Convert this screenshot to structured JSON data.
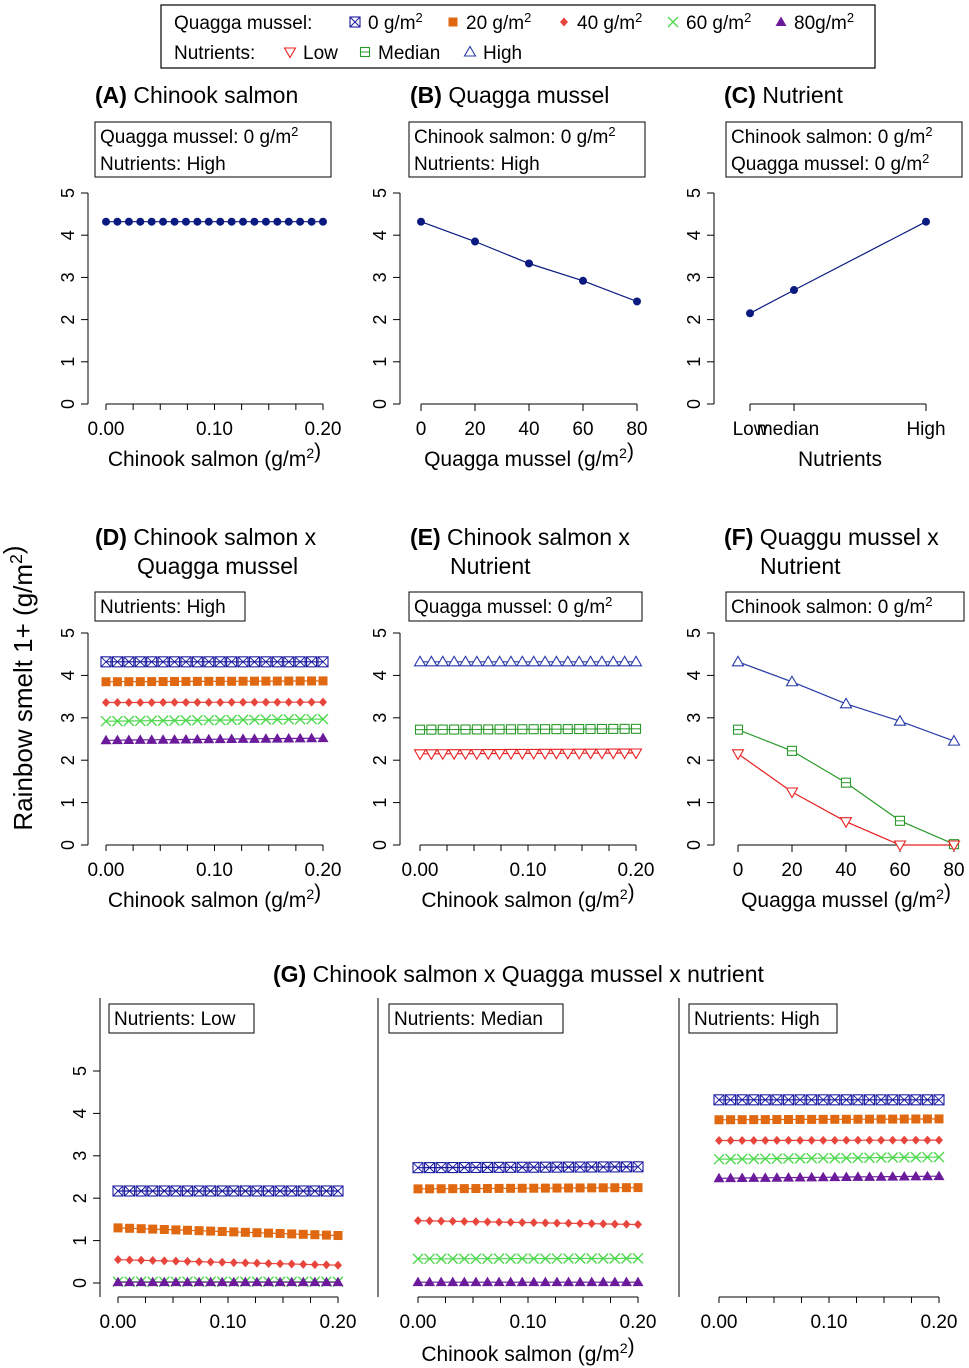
{
  "colors": {
    "q0": "#1a1aa0",
    "q20": "#e06810",
    "q40": "#e8453c",
    "q60": "#50d850",
    "q80": "#6a1a9a",
    "low": "#e82020",
    "median": "#2a9a2a",
    "high": "#2a3aa8",
    "main": "#0b1a80"
  },
  "legend": {
    "quagga_label": "Quagga mussel:",
    "quagga_items": [
      "0 g/m2",
      "20 g/m2",
      "40 g/m2",
      "60 g/m2",
      "80g/m2"
    ],
    "nutrient_label": "Nutrients:",
    "nutrient_items": [
      "Low",
      "Median",
      "High"
    ]
  },
  "ylabel": "Rainbow smelt 1+ (g/m2)",
  "g_title": "(G) Chinook salmon x Quagga mussel x nutrient",
  "chart_data": [
    {
      "id": "A",
      "type": "line",
      "title_tag": "(A)",
      "title": "Chinook salmon",
      "box": [
        "Quagga mussel: 0 g/m2",
        "Nutrients: High"
      ],
      "xlabel": "Chinook salmon (g/m2)",
      "x_ticks": [
        "0.00",
        "0.10",
        "0.20"
      ],
      "y_ticks": [
        "0",
        "1",
        "2",
        "3",
        "4",
        "5"
      ],
      "xlim": [
        0,
        0.2
      ],
      "ylim": [
        0,
        5
      ],
      "series": [
        {
          "color": "main",
          "marker": "dot",
          "x": [
            0,
            0.0105,
            0.0211,
            0.0316,
            0.0421,
            0.0526,
            0.0632,
            0.0737,
            0.0842,
            0.0947,
            0.1053,
            0.1158,
            0.1263,
            0.1368,
            0.1474,
            0.1579,
            0.1684,
            0.1789,
            0.1895,
            0.2
          ],
          "y": [
            4.32,
            4.32,
            4.32,
            4.32,
            4.32,
            4.32,
            4.32,
            4.32,
            4.32,
            4.32,
            4.32,
            4.32,
            4.32,
            4.32,
            4.32,
            4.32,
            4.32,
            4.32,
            4.32,
            4.32
          ]
        }
      ]
    },
    {
      "id": "B",
      "type": "line",
      "title_tag": "(B)",
      "title": "Quagga mussel",
      "box": [
        "Chinook salmon: 0 g/m2",
        "Nutrients: High"
      ],
      "xlabel": "Quagga mussel (g/m2)",
      "x_ticks": [
        "0",
        "20",
        "40",
        "60",
        "80"
      ],
      "y_ticks": [
        "0",
        "1",
        "2",
        "3",
        "4",
        "5"
      ],
      "xlim": [
        0,
        80
      ],
      "ylim": [
        0,
        5
      ],
      "series": [
        {
          "color": "main",
          "marker": "dot",
          "x": [
            0,
            20,
            40,
            60,
            80
          ],
          "y": [
            4.32,
            3.85,
            3.33,
            2.92,
            2.43
          ]
        }
      ]
    },
    {
      "id": "C",
      "type": "line",
      "title_tag": "(C)",
      "title": "Nutrient",
      "box": [
        "Chinook salmon: 0 g/m2",
        "Quagga mussel: 0 g/m2"
      ],
      "xlabel": "Nutrients",
      "x_ticks": [
        "Low",
        "median",
        "High"
      ],
      "x_tick_positions": [
        0,
        1,
        4
      ],
      "y_ticks": [
        "0",
        "1",
        "2",
        "3",
        "4",
        "5"
      ],
      "xlim": [
        0,
        4
      ],
      "ylim": [
        0,
        5
      ],
      "series": [
        {
          "color": "main",
          "marker": "dot",
          "x": [
            0,
            1,
            4
          ],
          "y": [
            2.15,
            2.7,
            4.32
          ]
        }
      ]
    },
    {
      "id": "D",
      "type": "line",
      "title_tag": "(D)",
      "title": "Chinook salmon x",
      "title2": "Quagga mussel",
      "box": [
        "Nutrients: High"
      ],
      "xlabel": "Chinook salmon (g/m2)",
      "x_ticks": [
        "0.00",
        "0.10",
        "0.20"
      ],
      "y_ticks": [
        "0",
        "1",
        "2",
        "3",
        "4",
        "5"
      ],
      "xlim": [
        0,
        0.2
      ],
      "ylim": [
        0,
        5
      ],
      "n_points": 20,
      "series": [
        {
          "name": "0 g/m2",
          "color": "q0",
          "marker": "sqx",
          "start": 4.32,
          "end": 4.32
        },
        {
          "name": "20 g/m2",
          "color": "q20",
          "marker": "sqf",
          "start": 3.85,
          "end": 3.87
        },
        {
          "name": "40 g/m2",
          "color": "q40",
          "marker": "dia",
          "start": 3.36,
          "end": 3.37
        },
        {
          "name": "60 g/m2",
          "color": "q60",
          "marker": "x",
          "start": 2.92,
          "end": 2.97
        },
        {
          "name": "80g/m2",
          "color": "q80",
          "marker": "tri",
          "start": 2.47,
          "end": 2.52
        }
      ]
    },
    {
      "id": "E",
      "type": "line",
      "title_tag": "(E)",
      "title": "Chinook salmon x",
      "title2": "Nutrient",
      "box": [
        "Quagga mussel: 0 g/m2"
      ],
      "xlabel": "Chinook salmon (g/m2)",
      "x_ticks": [
        "0.00",
        "0.10",
        "0.20"
      ],
      "y_ticks": [
        "0",
        "1",
        "2",
        "3",
        "4",
        "5"
      ],
      "xlim": [
        0,
        0.2
      ],
      "ylim": [
        0,
        5
      ],
      "n_points": 20,
      "series": [
        {
          "name": "High",
          "color": "high",
          "marker": "tri_open",
          "start": 4.32,
          "end": 4.32
        },
        {
          "name": "Median",
          "color": "median",
          "marker": "sq_open",
          "start": 2.72,
          "end": 2.74
        },
        {
          "name": "Low",
          "color": "low",
          "marker": "tri_down",
          "start": 2.15,
          "end": 2.17
        }
      ]
    },
    {
      "id": "F",
      "type": "line",
      "title_tag": "(F)",
      "title": "Quaggu mussel x",
      "title2": "Nutrient",
      "box": [
        "Chinook salmon: 0 g/m2"
      ],
      "xlabel": "Quagga mussel (g/m2)",
      "x_ticks": [
        "0",
        "20",
        "40",
        "60",
        "80"
      ],
      "y_ticks": [
        "0",
        "1",
        "2",
        "3",
        "4",
        "5"
      ],
      "xlim": [
        0,
        80
      ],
      "ylim": [
        0,
        5
      ],
      "series": [
        {
          "name": "High",
          "color": "high",
          "marker": "tri_open",
          "x": [
            0,
            20,
            40,
            60,
            80
          ],
          "y": [
            4.32,
            3.85,
            3.33,
            2.92,
            2.45
          ]
        },
        {
          "name": "Median",
          "color": "median",
          "marker": "sq_open",
          "x": [
            0,
            20,
            40,
            60,
            80
          ],
          "y": [
            2.72,
            2.22,
            1.47,
            0.57,
            0.02
          ]
        },
        {
          "name": "Low",
          "color": "low",
          "marker": "tri_down",
          "x": [
            0,
            20,
            40,
            60,
            80
          ],
          "y": [
            2.15,
            1.25,
            0.55,
            0.0,
            0.0
          ]
        }
      ]
    },
    {
      "id": "G1",
      "type": "line",
      "box": [
        "Nutrients: Low"
      ],
      "x_ticks": [
        "0.00",
        "0.10",
        "0.20"
      ],
      "y_ticks": [
        "0",
        "1",
        "2",
        "3",
        "4",
        "5"
      ],
      "xlim": [
        0,
        0.2
      ],
      "ylim": [
        0,
        5
      ],
      "n_points": 20,
      "series": [
        {
          "name": "0 g/m2",
          "color": "q0",
          "marker": "sqx",
          "start": 2.17,
          "end": 2.17
        },
        {
          "name": "20 g/m2",
          "color": "q20",
          "marker": "sqf",
          "start": 1.3,
          "end": 1.12
        },
        {
          "name": "40 g/m2",
          "color": "q40",
          "marker": "dia",
          "start": 0.55,
          "end": 0.42
        },
        {
          "name": "60 g/m2",
          "color": "q60",
          "marker": "x",
          "start": 0.03,
          "end": 0.03
        },
        {
          "name": "80g/m2",
          "color": "q80",
          "marker": "tri",
          "start": 0.02,
          "end": 0.02
        }
      ]
    },
    {
      "id": "G2",
      "type": "line",
      "box": [
        "Nutrients: Median"
      ],
      "x_ticks": [
        "0.00",
        "0.10",
        "0.20"
      ],
      "y_ticks": [
        "0",
        "1",
        "2",
        "3",
        "4",
        "5"
      ],
      "xlim": [
        0,
        0.2
      ],
      "ylim": [
        0,
        5
      ],
      "n_points": 20,
      "series": [
        {
          "name": "0 g/m2",
          "color": "q0",
          "marker": "sqx",
          "start": 2.72,
          "end": 2.74
        },
        {
          "name": "20 g/m2",
          "color": "q20",
          "marker": "sqf",
          "start": 2.22,
          "end": 2.25
        },
        {
          "name": "40 g/m2",
          "color": "q40",
          "marker": "dia",
          "start": 1.47,
          "end": 1.38
        },
        {
          "name": "60 g/m2",
          "color": "q60",
          "marker": "x",
          "start": 0.57,
          "end": 0.58
        },
        {
          "name": "80g/m2",
          "color": "q80",
          "marker": "tri",
          "start": 0.02,
          "end": 0.02
        }
      ]
    },
    {
      "id": "G3",
      "type": "line",
      "box": [
        "Nutrients: High"
      ],
      "x_ticks": [
        "0.00",
        "0.10",
        "0.20"
      ],
      "y_ticks": [
        "0",
        "1",
        "2",
        "3",
        "4",
        "5"
      ],
      "xlim": [
        0,
        0.2
      ],
      "ylim": [
        0,
        5
      ],
      "n_points": 20,
      "series": [
        {
          "name": "0 g/m2",
          "color": "q0",
          "marker": "sqx",
          "start": 4.32,
          "end": 4.32
        },
        {
          "name": "20 g/m2",
          "color": "q20",
          "marker": "sqf",
          "start": 3.85,
          "end": 3.87
        },
        {
          "name": "40 g/m2",
          "color": "q40",
          "marker": "dia",
          "start": 3.36,
          "end": 3.37
        },
        {
          "name": "60 g/m2",
          "color": "q60",
          "marker": "x",
          "start": 2.92,
          "end": 2.97
        },
        {
          "name": "80g/m2",
          "color": "q80",
          "marker": "tri",
          "start": 2.47,
          "end": 2.52
        }
      ]
    }
  ],
  "g_xlabel": "Chinook salmon (g/m2)"
}
